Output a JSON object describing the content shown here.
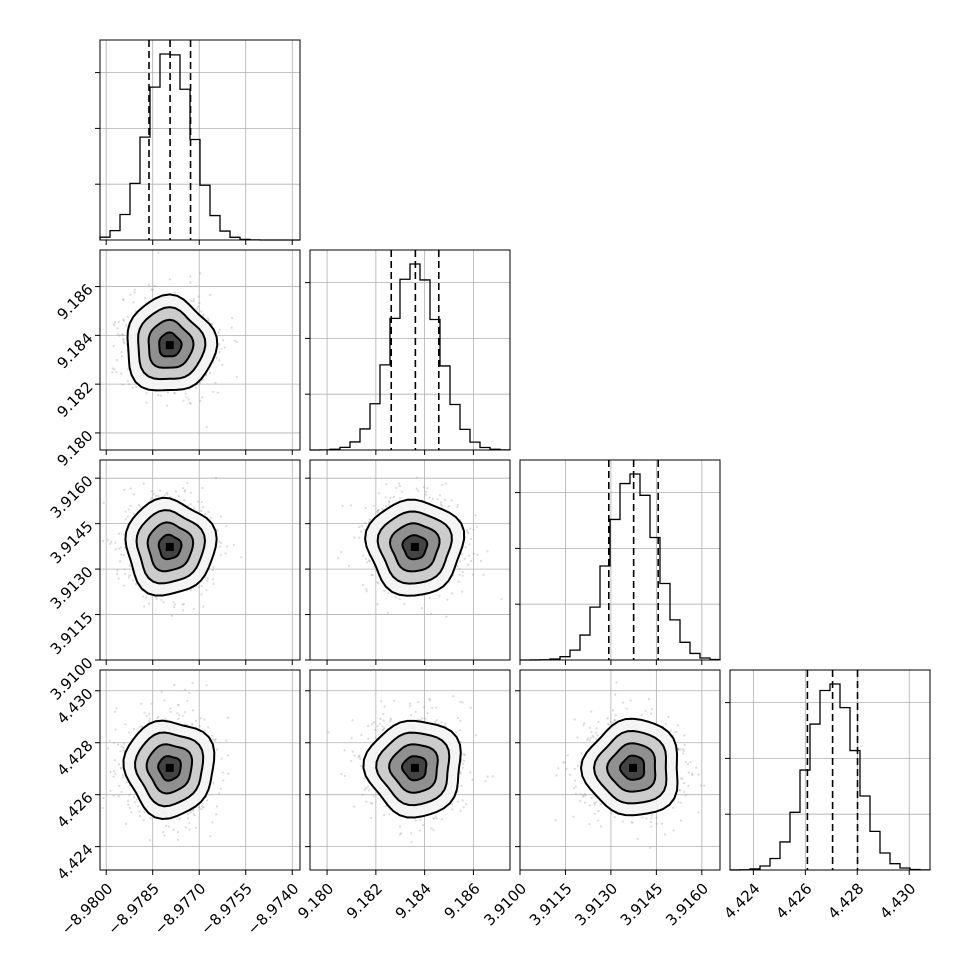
{
  "chart_data": {
    "type": "corner",
    "parameters": [
      {
        "range": [
          -8.9802,
          -8.97375
        ],
        "ticks": [
          "−8.9800",
          "−8.9785",
          "−8.9770",
          "−8.9755",
          "−8.9740"
        ],
        "tick_values": [
          -8.98,
          -8.9785,
          -8.977,
          -8.9755,
          -8.974
        ],
        "mean": -8.97795,
        "sd": 0.00072,
        "quantiles": [
          -8.97862,
          -8.97794,
          -8.97728
        ]
      },
      {
        "range": [
          9.1793,
          9.1875
        ],
        "ticks": [
          "9.180",
          "9.182",
          "9.184",
          "9.186"
        ],
        "tick_values": [
          9.18,
          9.182,
          9.184,
          9.186
        ],
        "mean": 9.1836,
        "sd": 0.00098,
        "quantiles": [
          9.18263,
          9.18362,
          9.18458
        ]
      },
      {
        "range": [
          3.91,
          3.9166
        ],
        "ticks": [
          "3.9100",
          "3.9115",
          "3.9130",
          "3.9145",
          "3.9160"
        ],
        "tick_values": [
          3.91,
          3.9115,
          3.913,
          3.9145,
          3.916
        ],
        "mean": 3.91373,
        "sd": 0.00079,
        "quantiles": [
          3.91293,
          3.91375,
          3.91456
        ]
      },
      {
        "range": [
          4.4231,
          4.4308
        ],
        "ticks": [
          "4.424",
          "4.426",
          "4.428",
          "4.430"
        ],
        "tick_values": [
          4.424,
          4.426,
          4.428,
          4.43
        ],
        "mean": 4.42703,
        "sd": 0.00093,
        "quantiles": [
          4.42608,
          4.42705,
          4.42801
        ]
      }
    ],
    "grid": true,
    "hist_bins": 20
  }
}
